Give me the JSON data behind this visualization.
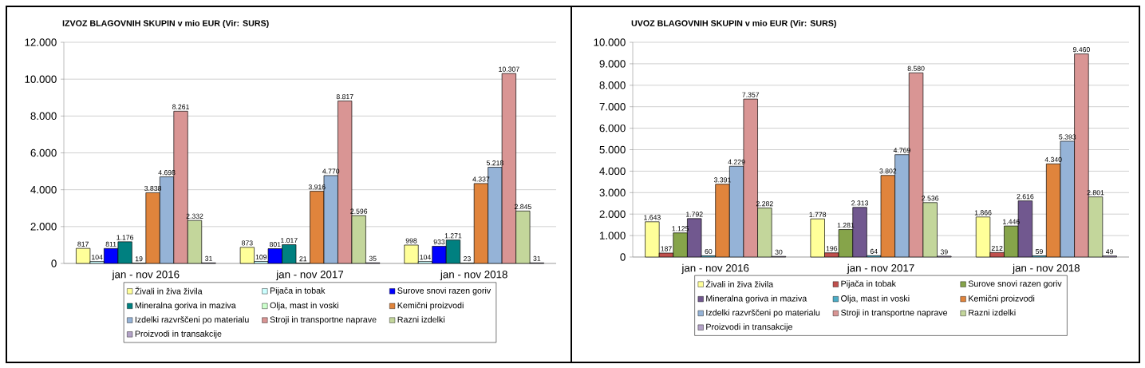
{
  "chart_data": [
    {
      "type": "bar",
      "title": "IZVOZ BLAGOVNIH SKUPIN v mio EUR (Vir: SURS)",
      "categories": [
        "jan - nov 2016",
        "jan - nov 2017",
        "jan - nov 2018"
      ],
      "ylim": [
        0,
        12000
      ],
      "yticks": [
        0,
        {
          "value": 2000,
          "label": "2.000"
        },
        {
          "value": 4000,
          "label": "4.000"
        },
        {
          "value": 6000,
          "label": "6.000"
        },
        {
          "value": 8000,
          "label": "8.000"
        },
        {
          "value": 10000,
          "label": "10.000"
        },
        {
          "value": 12000,
          "label": "12.000"
        }
      ],
      "grid": "y",
      "legend": "bottom",
      "series": [
        {
          "name": "Živali in živa živila",
          "color": "#ffff99",
          "values": [
            817,
            873,
            998
          ],
          "value_labels": [
            "817",
            "873",
            "998"
          ]
        },
        {
          "name": "Pijača in tobak",
          "color": "#ccffff",
          "values": [
            104,
            109,
            104
          ],
          "value_labels": [
            "104",
            "109",
            "104"
          ]
        },
        {
          "name": "Surove snovi razen goriv",
          "color": "#0000ff",
          "values": [
            811,
            801,
            933
          ],
          "value_labels": [
            "811",
            "801",
            "933"
          ]
        },
        {
          "name": "Mineralna goriva in maziva",
          "color": "#008080",
          "values": [
            1176,
            1017,
            1271
          ],
          "value_labels": [
            "1.176",
            "1.017",
            "1.271"
          ]
        },
        {
          "name": "Olja, mast in voski",
          "color": "#ccffcc",
          "values": [
            19,
            21,
            23
          ],
          "value_labels": [
            "19",
            "21",
            "23"
          ]
        },
        {
          "name": "Kemični proizvodi",
          "color": "#e0843c",
          "values": [
            3838,
            3916,
            4337
          ],
          "value_labels": [
            "3.838",
            "3.916",
            "4.337"
          ]
        },
        {
          "name": "Izdelki razvrščeni po materialu",
          "color": "#95b3d7",
          "values": [
            4698,
            4770,
            5218
          ],
          "value_labels": [
            "4.698",
            "4.770",
            "5.218"
          ]
        },
        {
          "name": "Stroji in transportne naprave",
          "color": "#d99594",
          "values": [
            8261,
            8817,
            10307
          ],
          "value_labels": [
            "8.261",
            "8.817",
            "10.307"
          ]
        },
        {
          "name": "Razni izdelki",
          "color": "#c3d69b",
          "values": [
            2332,
            2596,
            2845
          ],
          "value_labels": [
            "2.332",
            "2.596",
            "2.845"
          ]
        },
        {
          "name": "Proizvodi in transakcije",
          "color": "#b3a2c7",
          "values": [
            31,
            35,
            31
          ],
          "value_labels": [
            "31",
            "35",
            "31"
          ]
        }
      ]
    },
    {
      "type": "bar",
      "title": "UVOZ BLAGOVNIH SKUPIN v mio EUR (Vir: SURS)",
      "categories": [
        "jan - nov 2016",
        "jan - nov 2017",
        "jan - nov 2018"
      ],
      "ylim": [
        0,
        10000
      ],
      "yticks": [
        0,
        {
          "value": 1000,
          "label": "1.000"
        },
        {
          "value": 2000,
          "label": "2.000"
        },
        {
          "value": 3000,
          "label": "3.000"
        },
        {
          "value": 4000,
          "label": "4.000"
        },
        {
          "value": 5000,
          "label": "5.000"
        },
        {
          "value": 6000,
          "label": "6.000"
        },
        {
          "value": 7000,
          "label": "7.000"
        },
        {
          "value": 8000,
          "label": "8.000"
        },
        {
          "value": 9000,
          "label": "9.000"
        },
        {
          "value": 10000,
          "label": "10.000"
        }
      ],
      "grid": "y",
      "legend": "bottom",
      "series": [
        {
          "name": "Živali in živa živila",
          "color": "#ffff99",
          "values": [
            1643,
            1778,
            1866
          ],
          "value_labels": [
            "1.643",
            "1.778",
            "1.866"
          ]
        },
        {
          "name": "Pijača in tobak",
          "color": "#c0504d",
          "values": [
            187,
            196,
            212
          ],
          "value_labels": [
            "187",
            "196",
            "212"
          ]
        },
        {
          "name": "Surove snovi razen goriv",
          "color": "#86a44a",
          "values": [
            1125,
            1281,
            1446
          ],
          "value_labels": [
            "1.125",
            "1.281",
            "1.446"
          ]
        },
        {
          "name": "Mineralna goriva in maziva",
          "color": "#71588f",
          "values": [
            1792,
            2313,
            2616
          ],
          "value_labels": [
            "1.792",
            "2.313",
            "2.616"
          ]
        },
        {
          "name": "Olja, mast in voski",
          "color": "#4bacc6",
          "values": [
            60,
            64,
            59
          ],
          "value_labels": [
            "60",
            "64",
            "59"
          ]
        },
        {
          "name": "Kemični proizvodi",
          "color": "#e0843c",
          "values": [
            3391,
            3802,
            4340
          ],
          "value_labels": [
            "3.391",
            "3.802",
            "4.340"
          ]
        },
        {
          "name": "Izdelki razvrščeni po materialu",
          "color": "#95b3d7",
          "values": [
            4229,
            4769,
            5393
          ],
          "value_labels": [
            "4.229",
            "4.769",
            "5.393"
          ]
        },
        {
          "name": "Stroji in transportne naprave",
          "color": "#d99594",
          "values": [
            7357,
            8580,
            9460
          ],
          "value_labels": [
            "7.357",
            "8.580",
            "9.460"
          ]
        },
        {
          "name": "Razni izdelki",
          "color": "#c3d69b",
          "values": [
            2282,
            2536,
            2801
          ],
          "value_labels": [
            "2.282",
            "2.536",
            "2.801"
          ]
        },
        {
          "name": "Proizvodi in transakcije",
          "color": "#b3a2c7",
          "values": [
            30,
            39,
            49
          ],
          "value_labels": [
            "30",
            "39",
            "49"
          ]
        }
      ]
    }
  ]
}
